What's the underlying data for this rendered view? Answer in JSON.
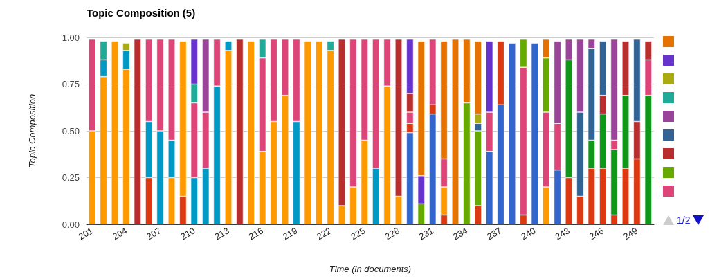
{
  "chart_data": {
    "type": "bar",
    "title": "Topic Composition (5)",
    "xlabel": "Time (in documents)",
    "ylabel": "Topic Composition",
    "stacked": true,
    "grid": "y",
    "categories": [
      "201",
      null,
      null,
      "204",
      null,
      null,
      "207",
      null,
      null,
      "210",
      null,
      null,
      "213",
      null,
      null,
      "216",
      null,
      null,
      "219",
      null,
      null,
      "222",
      null,
      null,
      "225",
      null,
      null,
      "228",
      null,
      null,
      "231",
      null,
      null,
      "234",
      null,
      null,
      "237",
      null,
      null,
      "240",
      null,
      null,
      "243",
      null,
      null,
      "246",
      null,
      null,
      "249",
      null
    ],
    "ylim": [
      0,
      1
    ],
    "yticks": [
      {
        "value": 0,
        "label": "0.00"
      },
      {
        "value": 0.25,
        "label": "0.25"
      },
      {
        "value": 0.5,
        "label": "0.50"
      },
      {
        "value": 0.75,
        "label": "0.75"
      },
      {
        "value": 1,
        "label": "1.00"
      }
    ],
    "annotations": [
      "1/2"
    ],
    "series": [
      {
        "color": "#3366cc",
        "values": [
          null,
          null,
          null,
          null,
          null,
          null,
          null,
          null,
          null,
          null,
          null,
          null,
          null,
          null,
          null,
          null,
          null,
          null,
          null,
          null,
          null,
          null,
          null,
          null,
          null,
          null,
          null,
          null,
          0.49,
          null,
          0.59,
          null,
          null,
          null,
          null,
          0.39,
          0.64,
          0.97,
          null,
          0.97,
          null,
          0.29,
          null,
          null,
          null,
          null,
          null,
          null,
          null,
          null
        ]
      },
      {
        "color": "#dc3912",
        "values": [
          null,
          null,
          null,
          null,
          null,
          0.25,
          null,
          null,
          0.15,
          null,
          null,
          null,
          null,
          null,
          null,
          null,
          null,
          null,
          null,
          null,
          null,
          null,
          null,
          null,
          null,
          null,
          null,
          null,
          0.05,
          null,
          0.05,
          0.05,
          null,
          null,
          0.1,
          null,
          0.34,
          null,
          0.05,
          null,
          null,
          null,
          0.25,
          0.15,
          0.3,
          0.3,
          0.05,
          0.3,
          0.35,
          null
        ]
      },
      {
        "color": "#ff9900",
        "values": [
          0.5,
          0.79,
          0.98,
          0.83,
          null,
          null,
          null,
          0.25,
          0.83,
          null,
          null,
          null,
          0.93,
          null,
          0.98,
          0.39,
          0.55,
          0.69,
          null,
          0.98,
          0.98,
          0.93,
          0.1,
          0.2,
          0.45,
          null,
          0.74,
          0.15,
          null,
          null,
          null,
          0.15,
          null,
          null,
          null,
          null,
          null,
          null,
          null,
          null,
          0.2,
          null,
          null,
          null,
          null,
          null,
          null,
          null,
          null,
          null
        ]
      },
      {
        "color": "#109618",
        "values": [
          null,
          null,
          null,
          null,
          null,
          null,
          null,
          null,
          null,
          null,
          null,
          null,
          null,
          null,
          null,
          null,
          null,
          null,
          null,
          null,
          null,
          null,
          null,
          null,
          null,
          null,
          null,
          null,
          null,
          null,
          null,
          null,
          null,
          null,
          null,
          null,
          null,
          null,
          null,
          null,
          null,
          null,
          0.63,
          null,
          0.15,
          0.29,
          0.35,
          0.39,
          null,
          0.69
        ]
      },
      {
        "color": "#0099c6",
        "values": [
          null,
          0.09,
          null,
          0.1,
          null,
          0.3,
          0.5,
          0.2,
          null,
          0.25,
          0.3,
          0.74,
          0.05,
          null,
          null,
          null,
          null,
          null,
          0.55,
          null,
          null,
          null,
          null,
          null,
          null,
          0.3,
          null,
          null,
          null,
          null,
          null,
          null,
          null,
          null,
          null,
          null,
          null,
          null,
          null,
          null,
          null,
          null,
          null,
          null,
          null,
          null,
          null,
          null,
          null,
          null
        ]
      },
      {
        "color": "#dd4477",
        "values": [
          0.49,
          null,
          null,
          null,
          null,
          0.44,
          0.49,
          0.54,
          null,
          0.4,
          0.3,
          0.25,
          null,
          null,
          null,
          0.5,
          0.44,
          0.3,
          0.44,
          null,
          null,
          null,
          null,
          0.79,
          0.54,
          0.69,
          0.25,
          null,
          0.06,
          null,
          0.35,
          0.15,
          null,
          null,
          null,
          0.21,
          null,
          null,
          0.79,
          null,
          0.4,
          0.25,
          null,
          null,
          null,
          null,
          0.05,
          null,
          null,
          0.19
        ]
      },
      {
        "color": "#66aa00",
        "values": [
          null,
          null,
          null,
          null,
          null,
          null,
          null,
          null,
          null,
          null,
          null,
          null,
          null,
          null,
          null,
          null,
          null,
          null,
          null,
          null,
          null,
          null,
          null,
          null,
          null,
          null,
          null,
          null,
          null,
          0.11,
          null,
          null,
          null,
          0.65,
          0.4,
          null,
          null,
          null,
          0.15,
          null,
          0.29,
          null,
          null,
          null,
          null,
          null,
          null,
          null,
          null,
          null
        ]
      },
      {
        "color": "#b82e2e",
        "values": [
          null,
          null,
          null,
          null,
          0.99,
          null,
          null,
          null,
          null,
          null,
          null,
          null,
          null,
          0.99,
          null,
          null,
          null,
          null,
          null,
          null,
          null,
          null,
          0.89,
          null,
          null,
          null,
          null,
          0.84,
          0.1,
          null,
          null,
          null,
          null,
          null,
          null,
          null,
          null,
          null,
          null,
          null,
          null,
          null,
          null,
          null,
          null,
          0.1,
          null,
          0.29,
          0.2,
          0.1
        ]
      },
      {
        "color": "#316395",
        "values": [
          null,
          null,
          null,
          null,
          null,
          null,
          null,
          null,
          null,
          null,
          null,
          null,
          null,
          null,
          null,
          null,
          null,
          null,
          null,
          null,
          null,
          null,
          null,
          null,
          null,
          null,
          null,
          null,
          null,
          null,
          null,
          null,
          null,
          null,
          0.04,
          null,
          null,
          null,
          null,
          null,
          null,
          null,
          null,
          0.45,
          0.49,
          0.29,
          null,
          null,
          0.44,
          null
        ]
      },
      {
        "color": "#994499",
        "values": [
          null,
          null,
          null,
          null,
          null,
          null,
          null,
          null,
          null,
          null,
          0.39,
          null,
          null,
          null,
          null,
          null,
          null,
          null,
          null,
          null,
          null,
          null,
          null,
          null,
          null,
          null,
          null,
          null,
          null,
          null,
          null,
          null,
          null,
          null,
          null,
          null,
          null,
          null,
          null,
          null,
          null,
          0.44,
          0.11,
          0.39,
          0.05,
          null,
          0.54,
          null,
          null,
          null
        ]
      },
      {
        "color": "#22aa99",
        "values": [
          null,
          0.1,
          null,
          null,
          null,
          null,
          null,
          null,
          null,
          0.1,
          null,
          null,
          null,
          null,
          null,
          0.1,
          null,
          null,
          null,
          null,
          null,
          0.05,
          null,
          null,
          null,
          null,
          null,
          null,
          null,
          null,
          null,
          null,
          null,
          null,
          null,
          null,
          null,
          null,
          null,
          null,
          null,
          null,
          null,
          null,
          null,
          null,
          null,
          null,
          null,
          null
        ]
      },
      {
        "color": "#aaaa11",
        "values": [
          null,
          null,
          null,
          0.04,
          null,
          null,
          null,
          null,
          null,
          null,
          null,
          null,
          null,
          null,
          null,
          null,
          null,
          null,
          null,
          null,
          null,
          null,
          null,
          null,
          null,
          null,
          null,
          null,
          null,
          null,
          null,
          null,
          null,
          null,
          0.05,
          null,
          null,
          null,
          null,
          null,
          null,
          null,
          null,
          null,
          null,
          null,
          null,
          null,
          null,
          null
        ]
      },
      {
        "color": "#6633cc",
        "values": [
          null,
          null,
          null,
          null,
          null,
          null,
          null,
          null,
          null,
          0.24,
          null,
          null,
          null,
          null,
          null,
          null,
          null,
          null,
          null,
          null,
          null,
          null,
          null,
          null,
          null,
          null,
          null,
          null,
          0.29,
          0.15,
          null,
          null,
          null,
          null,
          null,
          0.38,
          null,
          null,
          null,
          null,
          null,
          null,
          null,
          null,
          null,
          null,
          null,
          null,
          null,
          null
        ]
      },
      {
        "color": "#e67300",
        "values": [
          null,
          null,
          null,
          null,
          null,
          null,
          null,
          null,
          null,
          null,
          null,
          null,
          null,
          null,
          null,
          null,
          null,
          null,
          null,
          null,
          null,
          null,
          null,
          null,
          null,
          null,
          null,
          null,
          null,
          0.72,
          null,
          0.63,
          0.99,
          0.34,
          0.39,
          null,
          null,
          null,
          null,
          null,
          0.1,
          null,
          null,
          null,
          null,
          null,
          null,
          null,
          null,
          null
        ]
      }
    ]
  }
}
